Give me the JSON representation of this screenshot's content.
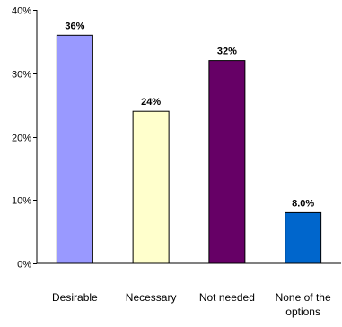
{
  "chart_data": {
    "type": "bar",
    "categories": [
      "Desirable",
      "Necessary",
      "Not needed",
      "None of the options"
    ],
    "category_lines": [
      [
        "Desirable"
      ],
      [
        "Necessary"
      ],
      [
        "Not needed"
      ],
      [
        "None of the",
        "options"
      ]
    ],
    "values": [
      36,
      24,
      32,
      8
    ],
    "data_labels": [
      "36%",
      "24%",
      "32%",
      "8.0%"
    ],
    "bar_colors": [
      "#9999ff",
      "#ffffcc",
      "#660066",
      "#0066cc"
    ],
    "ylim": [
      0,
      40
    ],
    "yticks": [
      0,
      10,
      20,
      30,
      40
    ],
    "ytick_labels": [
      "0%",
      "10%",
      "20%",
      "30%",
      "40%"
    ],
    "title": "",
    "xlabel": "",
    "ylabel": "",
    "grid": false,
    "legend": "none"
  }
}
